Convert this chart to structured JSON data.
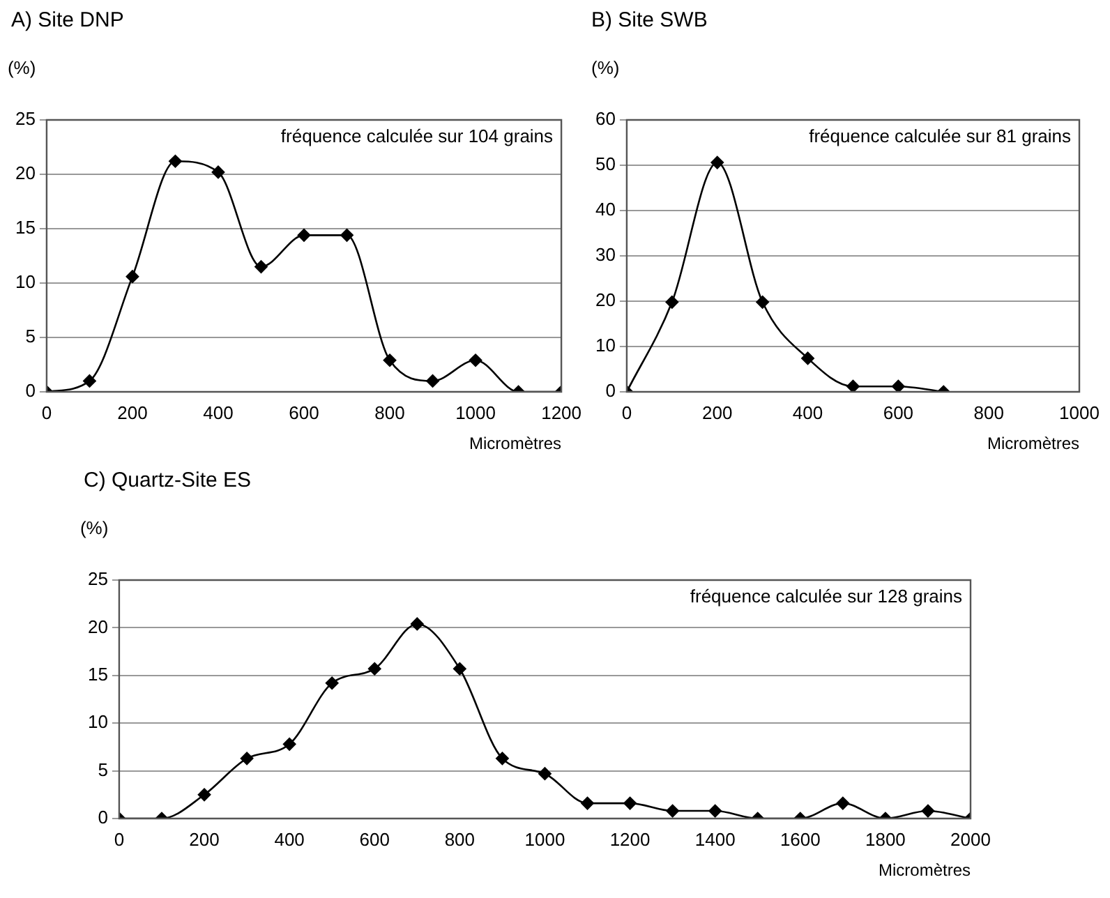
{
  "chart_data": [
    {
      "type": "line",
      "title": "A) Site DNP",
      "ylabel": "(%)",
      "xlabel": "Micromètres",
      "annotations": [
        "fréquence calculée sur 104 grains"
      ],
      "x": [
        0,
        100,
        200,
        300,
        400,
        500,
        600,
        700,
        800,
        900,
        1000,
        1100,
        1200
      ],
      "values": [
        0,
        1,
        10.6,
        21.2,
        20.2,
        11.5,
        14.4,
        14.4,
        2.9,
        1,
        2.9,
        0,
        0
      ],
      "color": "#000000",
      "xlim": [
        0,
        1200
      ],
      "xticks": [
        0,
        200,
        400,
        600,
        800,
        1000,
        1200
      ],
      "ylim": [
        0,
        25
      ],
      "yticks": [
        0,
        5,
        10,
        15,
        20,
        25
      ],
      "grid": "y",
      "marker": "diamond"
    },
    {
      "type": "line",
      "title": "B) Site SWB",
      "ylabel": "(%)",
      "xlabel": "Micromètres",
      "annotations": [
        "fréquence calculée sur 81 grains"
      ],
      "x": [
        0,
        100,
        200,
        300,
        400,
        500,
        600,
        700
      ],
      "values": [
        0,
        19.8,
        50.6,
        19.8,
        7.4,
        1.2,
        1.2,
        0
      ],
      "color": "#000000",
      "xlim": [
        0,
        1000
      ],
      "xticks": [
        0,
        200,
        400,
        600,
        800,
        1000
      ],
      "ylim": [
        0,
        60
      ],
      "yticks": [
        0,
        10,
        20,
        30,
        40,
        50,
        60
      ],
      "grid": "y",
      "marker": "diamond"
    },
    {
      "type": "line",
      "title": "C) Quartz-Site ES",
      "ylabel": "(%)",
      "xlabel": "Micromètres",
      "annotations": [
        "fréquence calculée sur 128 grains"
      ],
      "x": [
        0,
        100,
        200,
        300,
        400,
        500,
        600,
        700,
        800,
        900,
        1000,
        1100,
        1200,
        1300,
        1400,
        1500,
        1600,
        1700,
        1800,
        1900,
        2000
      ],
      "values": [
        0,
        0,
        2.5,
        6.3,
        7.8,
        14.2,
        15.7,
        20.4,
        15.7,
        6.3,
        4.7,
        1.6,
        1.6,
        0.8,
        0.8,
        0,
        0,
        1.6,
        0,
        0.8,
        0
      ],
      "color": "#000000",
      "xlim": [
        0,
        2000
      ],
      "xticks": [
        0,
        200,
        400,
        600,
        800,
        1000,
        1200,
        1400,
        1600,
        1800,
        2000
      ],
      "ylim": [
        0,
        25
      ],
      "yticks": [
        0,
        5,
        10,
        15,
        20,
        25
      ],
      "grid": "y",
      "marker": "diamond"
    }
  ]
}
